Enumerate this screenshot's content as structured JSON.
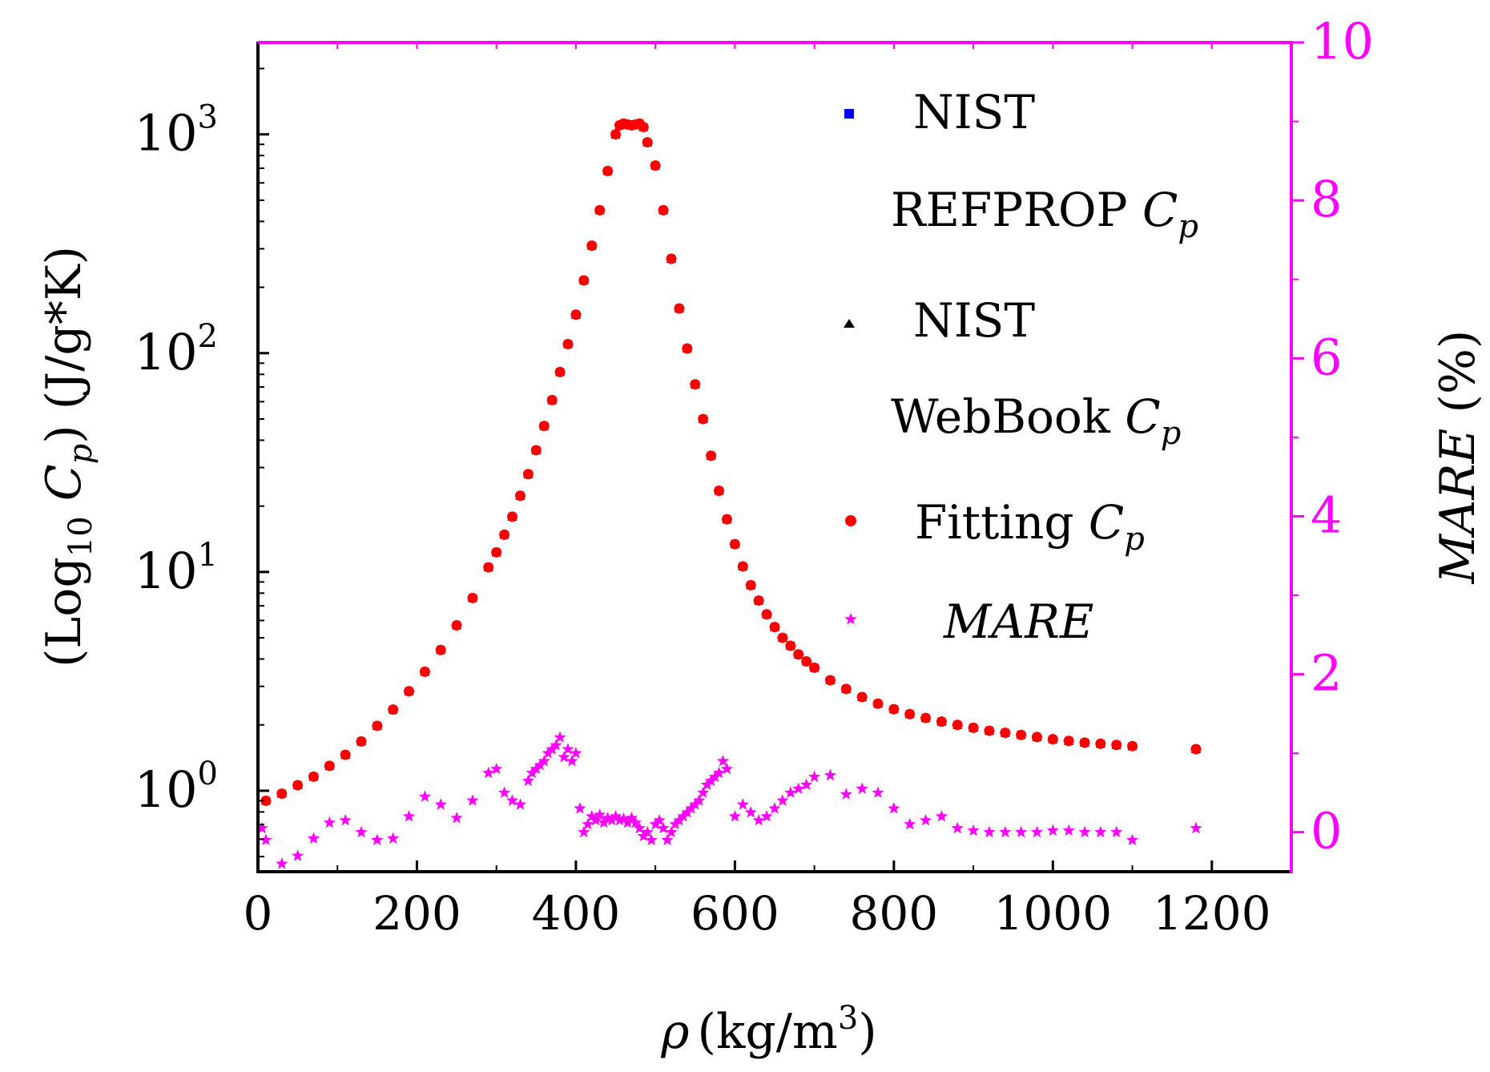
{
  "colors": {
    "axis": "#000000",
    "right_axis": "#ff00ff",
    "nist_refprop": "#0000ff",
    "nist_webbook": "#000000",
    "fitting": "#ff0000",
    "mare": "#ff00ff"
  },
  "legend": {
    "placement": "top-right",
    "entries": [
      {
        "key": "refprop",
        "marker": "square",
        "lines": [
          [
            "NIST",
            ""
          ],
          [
            "REFPROP ",
            "C",
            "p"
          ]
        ]
      },
      {
        "key": "webbook",
        "marker": "triangle",
        "lines": [
          [
            "NIST",
            ""
          ],
          [
            "WebBook ",
            "C",
            "p"
          ]
        ]
      },
      {
        "key": "fitting",
        "marker": "circle",
        "lines": [
          [
            "Fitting ",
            "C",
            "p"
          ]
        ]
      },
      {
        "key": "mare",
        "marker": "star",
        "lines": [
          [
            "MARE",
            ""
          ]
        ]
      }
    ],
    "text": {
      "nist1": "NIST",
      "refprop": "REFPROP ",
      "nist2": "NIST",
      "webbook": "WebBook ",
      "fitting": "Fitting ",
      "c": "C",
      "p": "p",
      "mare": "MARE"
    }
  },
  "chart_data": {
    "type": "scatter",
    "title": "",
    "xlabel": {
      "symbol": "ρ",
      "unit": "(kg/m",
      "sup": "3",
      "close": ")"
    },
    "ylabel": {
      "open": "(Log",
      "sub": "10",
      "c": " C",
      "p": "p",
      "unit": ") (J/g*K)"
    },
    "y2label": {
      "italic": "MARE",
      "unit": " (%)"
    },
    "xlim": [
      0,
      1300
    ],
    "ylim_log10": [
      -0.37,
      3.42
    ],
    "y2lim": [
      -0.5,
      10
    ],
    "x_ticks": [
      0,
      200,
      400,
      600,
      800,
      1000,
      1200
    ],
    "x_tick_labels": [
      "0",
      "200",
      "400",
      "600",
      "800",
      "1000",
      "1200"
    ],
    "y_ticks_log10": [
      0,
      1,
      2,
      3
    ],
    "y_tick_labels": [
      {
        "base": "10",
        "exp": "0"
      },
      {
        "base": "10",
        "exp": "1"
      },
      {
        "base": "10",
        "exp": "2"
      },
      {
        "base": "10",
        "exp": "3"
      }
    ],
    "y2_ticks": [
      0,
      2,
      4,
      6,
      8,
      10
    ],
    "y2_tick_labels": [
      "0",
      "2",
      "4",
      "6",
      "8",
      "10"
    ],
    "series": [
      {
        "name": "NIST REFPROP Cp",
        "axis": "left",
        "marker": "square",
        "color": "#0000ff",
        "x": [
          10,
          30,
          50,
          70,
          90,
          110,
          130,
          150,
          170,
          190,
          210,
          230,
          250,
          270,
          290,
          300,
          310,
          320,
          330,
          340,
          350,
          360,
          370,
          380,
          390,
          400,
          410,
          420,
          430,
          440,
          450,
          455,
          460,
          465,
          470,
          475,
          480,
          485,
          490,
          500,
          510,
          520,
          530,
          540,
          550,
          560,
          570,
          580,
          590,
          600,
          610,
          620,
          630,
          640,
          650,
          660,
          670,
          680,
          690,
          700,
          720,
          740,
          760,
          780,
          800,
          820,
          840,
          860,
          880,
          900,
          920,
          940,
          960,
          980,
          1000,
          1020,
          1040,
          1060,
          1080,
          1100,
          1180
        ],
        "y": [
          0.9,
          0.97,
          1.06,
          1.16,
          1.3,
          1.46,
          1.68,
          1.98,
          2.35,
          2.85,
          3.5,
          4.4,
          5.7,
          7.6,
          10.5,
          12.3,
          14.8,
          17.9,
          22.3,
          28.0,
          36.0,
          46.5,
          61.0,
          82.0,
          110,
          150,
          215,
          310,
          450,
          680,
          1000,
          1100,
          1120,
          1110,
          1100,
          1110,
          1120,
          1080,
          920,
          720,
          450,
          270,
          160,
          105,
          72,
          50,
          34,
          23.5,
          17.4,
          13.4,
          10.6,
          8.7,
          7.4,
          6.4,
          5.6,
          5.0,
          4.6,
          4.2,
          3.9,
          3.65,
          3.2,
          2.92,
          2.68,
          2.5,
          2.36,
          2.24,
          2.15,
          2.07,
          2.0,
          1.94,
          1.88,
          1.84,
          1.8,
          1.76,
          1.72,
          1.69,
          1.66,
          1.64,
          1.62,
          1.6,
          1.55
        ]
      },
      {
        "name": "NIST WebBook Cp",
        "axis": "left",
        "marker": "triangle",
        "color": "#000000",
        "x": [
          10,
          30,
          50,
          70,
          90,
          110,
          130,
          150,
          170,
          190,
          210,
          230,
          250,
          270,
          290,
          300,
          310,
          320,
          330,
          340,
          350,
          360,
          370,
          380,
          390,
          400,
          410,
          420,
          430,
          440,
          450,
          455,
          460,
          465,
          470,
          475,
          480,
          485,
          490,
          500,
          510,
          520,
          530,
          540,
          550,
          560,
          570,
          580,
          590,
          600,
          610,
          620,
          630,
          640,
          650,
          660,
          670,
          680,
          690,
          700,
          720,
          740,
          760,
          780,
          800,
          820,
          840,
          860,
          880,
          900,
          920,
          940,
          960,
          980,
          1000,
          1020,
          1040,
          1060,
          1080,
          1100,
          1180
        ],
        "y": [
          0.9,
          0.97,
          1.06,
          1.16,
          1.3,
          1.46,
          1.68,
          1.98,
          2.35,
          2.85,
          3.5,
          4.4,
          5.7,
          7.6,
          10.5,
          12.3,
          14.8,
          17.9,
          22.3,
          28.0,
          36.0,
          46.5,
          61.0,
          82.0,
          110,
          150,
          215,
          310,
          450,
          680,
          1000,
          1100,
          1120,
          1110,
          1100,
          1110,
          1120,
          1080,
          920,
          720,
          450,
          270,
          160,
          105,
          72,
          50,
          34,
          23.5,
          17.4,
          13.4,
          10.6,
          8.7,
          7.4,
          6.4,
          5.6,
          5.0,
          4.6,
          4.2,
          3.9,
          3.65,
          3.2,
          2.92,
          2.68,
          2.5,
          2.36,
          2.24,
          2.15,
          2.07,
          2.0,
          1.94,
          1.88,
          1.84,
          1.8,
          1.76,
          1.72,
          1.69,
          1.66,
          1.64,
          1.62,
          1.6,
          1.55
        ]
      },
      {
        "name": "Fitting Cp",
        "axis": "left",
        "marker": "circle",
        "color": "#ff0000",
        "x": [
          10,
          30,
          50,
          70,
          90,
          110,
          130,
          150,
          170,
          190,
          210,
          230,
          250,
          270,
          290,
          300,
          310,
          320,
          330,
          340,
          350,
          360,
          370,
          380,
          390,
          400,
          410,
          420,
          430,
          440,
          450,
          455,
          460,
          465,
          470,
          475,
          480,
          485,
          490,
          500,
          510,
          520,
          530,
          540,
          550,
          560,
          570,
          580,
          590,
          600,
          610,
          620,
          630,
          640,
          650,
          660,
          670,
          680,
          690,
          700,
          720,
          740,
          760,
          780,
          800,
          820,
          840,
          860,
          880,
          900,
          920,
          940,
          960,
          980,
          1000,
          1020,
          1040,
          1060,
          1080,
          1100,
          1180
        ],
        "y": [
          0.9,
          0.97,
          1.06,
          1.16,
          1.3,
          1.46,
          1.68,
          1.98,
          2.35,
          2.85,
          3.5,
          4.4,
          5.7,
          7.6,
          10.5,
          12.3,
          14.8,
          17.9,
          22.3,
          28.0,
          36.0,
          46.5,
          61.0,
          82.0,
          110,
          150,
          215,
          310,
          450,
          680,
          1000,
          1100,
          1120,
          1110,
          1100,
          1110,
          1120,
          1080,
          920,
          720,
          450,
          270,
          160,
          105,
          72,
          50,
          34,
          23.5,
          17.4,
          13.4,
          10.6,
          8.7,
          7.4,
          6.4,
          5.6,
          5.0,
          4.6,
          4.2,
          3.9,
          3.65,
          3.2,
          2.92,
          2.68,
          2.5,
          2.36,
          2.24,
          2.15,
          2.07,
          2.0,
          1.94,
          1.88,
          1.84,
          1.8,
          1.76,
          1.72,
          1.69,
          1.66,
          1.64,
          1.62,
          1.6,
          1.55
        ]
      },
      {
        "name": "MARE",
        "axis": "right",
        "marker": "star",
        "color": "#ff00ff",
        "x": [
          5,
          10,
          30,
          50,
          70,
          90,
          110,
          130,
          150,
          170,
          190,
          210,
          230,
          250,
          270,
          290,
          300,
          310,
          320,
          330,
          340,
          345,
          350,
          355,
          360,
          365,
          370,
          375,
          380,
          385,
          390,
          395,
          400,
          405,
          410,
          415,
          420,
          425,
          430,
          435,
          440,
          445,
          450,
          455,
          460,
          465,
          470,
          475,
          480,
          485,
          490,
          495,
          500,
          505,
          510,
          515,
          520,
          525,
          530,
          535,
          540,
          545,
          550,
          555,
          560,
          565,
          570,
          575,
          580,
          585,
          590,
          600,
          610,
          620,
          630,
          640,
          650,
          660,
          670,
          680,
          690,
          700,
          720,
          740,
          760,
          780,
          800,
          820,
          840,
          860,
          880,
          900,
          920,
          940,
          960,
          980,
          1000,
          1020,
          1040,
          1060,
          1080,
          1100,
          1180
        ],
        "y": [
          0.05,
          -0.1,
          -0.4,
          -0.3,
          -0.08,
          0.12,
          0.15,
          0.0,
          -0.1,
          -0.08,
          0.2,
          0.45,
          0.35,
          0.18,
          0.4,
          0.75,
          0.8,
          0.5,
          0.4,
          0.35,
          0.65,
          0.75,
          0.8,
          0.85,
          0.9,
          1.0,
          1.05,
          1.1,
          1.2,
          0.95,
          1.05,
          0.9,
          1.0,
          0.3,
          0.0,
          0.1,
          0.2,
          0.15,
          0.22,
          0.12,
          0.18,
          0.15,
          0.2,
          0.15,
          0.17,
          0.12,
          0.18,
          0.12,
          0.05,
          -0.05,
          0.0,
          -0.1,
          0.1,
          0.15,
          0.05,
          -0.1,
          0.0,
          0.1,
          0.15,
          0.2,
          0.25,
          0.3,
          0.35,
          0.4,
          0.5,
          0.6,
          0.65,
          0.7,
          0.75,
          0.9,
          0.8,
          0.2,
          0.35,
          0.25,
          0.15,
          0.2,
          0.3,
          0.4,
          0.5,
          0.55,
          0.6,
          0.7,
          0.72,
          0.48,
          0.55,
          0.5,
          0.3,
          0.1,
          0.15,
          0.2,
          0.05,
          0.02,
          0.0,
          0.0,
          0.0,
          0.0,
          0.02,
          0.02,
          0.0,
          0.0,
          0.0,
          -0.1,
          0.05
        ]
      }
    ]
  }
}
